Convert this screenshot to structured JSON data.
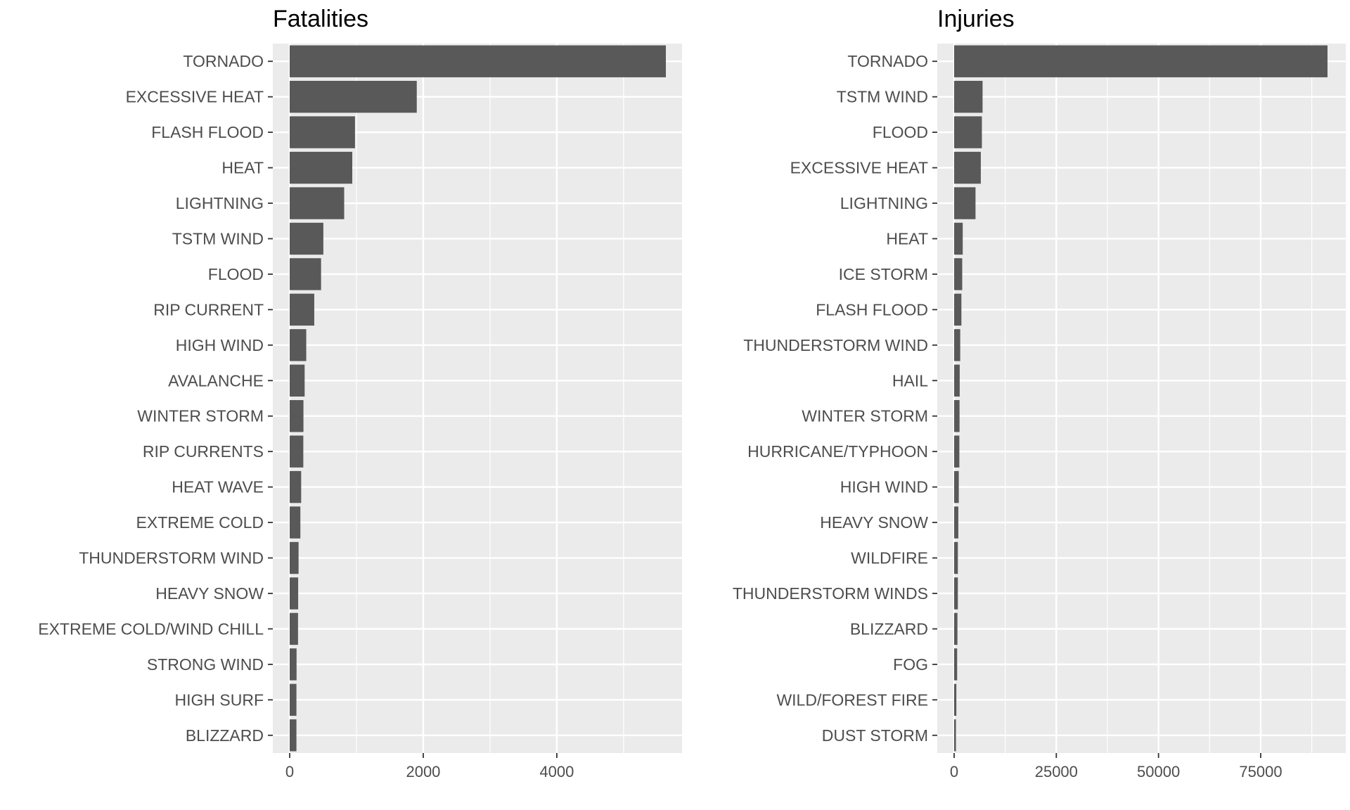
{
  "chart_data": [
    {
      "type": "bar",
      "orientation": "horizontal",
      "title": "Fatalities",
      "xlabel": "",
      "ylabel": "",
      "xlim": [
        0,
        5900
      ],
      "xticks": [
        0,
        2000,
        4000
      ],
      "grid": true,
      "categories": [
        "TORNADO",
        "EXCESSIVE HEAT",
        "FLASH FLOOD",
        "HEAT",
        "LIGHTNING",
        "TSTM WIND",
        "FLOOD",
        "RIP CURRENT",
        "HIGH WIND",
        "AVALANCHE",
        "WINTER STORM",
        "RIP CURRENTS",
        "HEAT WAVE",
        "EXTREME COLD",
        "THUNDERSTORM WIND",
        "HEAVY SNOW",
        "EXTREME COLD/WIND CHILL",
        "STRONG WIND",
        "HIGH SURF",
        "BLIZZARD"
      ],
      "values": [
        5633,
        1903,
        978,
        937,
        816,
        504,
        470,
        368,
        248,
        224,
        206,
        204,
        172,
        160,
        133,
        127,
        125,
        103,
        101,
        101
      ]
    },
    {
      "type": "bar",
      "orientation": "horizontal",
      "title": "Injuries",
      "xlabel": "",
      "ylabel": "",
      "xlim": [
        0,
        95000
      ],
      "xticks": [
        0,
        25000,
        50000,
        75000
      ],
      "grid": true,
      "categories": [
        "TORNADO",
        "TSTM WIND",
        "FLOOD",
        "EXCESSIVE HEAT",
        "LIGHTNING",
        "HEAT",
        "ICE STORM",
        "FLASH FLOOD",
        "THUNDERSTORM WIND",
        "HAIL",
        "WINTER STORM",
        "HURRICANE/TYPHOON",
        "HIGH WIND",
        "HEAVY SNOW",
        "WILDFIRE",
        "THUNDERSTORM WINDS",
        "BLIZZARD",
        "FOG",
        "WILD/FOREST FIRE",
        "DUST STORM"
      ],
      "values": [
        91346,
        6957,
        6789,
        6525,
        5230,
        2100,
        1975,
        1777,
        1488,
        1361,
        1321,
        1275,
        1137,
        1021,
        911,
        908,
        805,
        734,
        545,
        440
      ]
    }
  ]
}
